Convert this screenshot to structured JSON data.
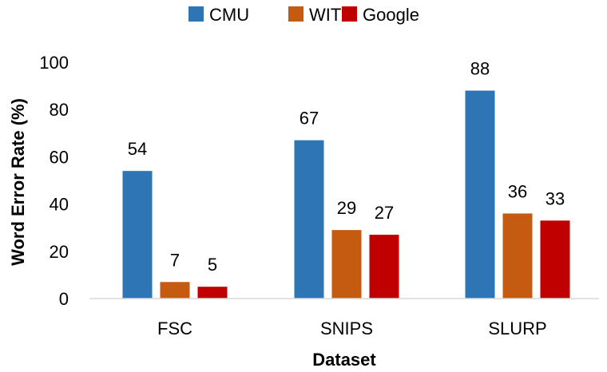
{
  "chart_data": {
    "type": "bar",
    "categories": [
      "FSC",
      "SNIPS",
      "SLURP"
    ],
    "series": [
      {
        "name": "CMU",
        "values": [
          54,
          67,
          88
        ],
        "color": "#2E75B6"
      },
      {
        "name": "WIT",
        "values": [
          7,
          29,
          36
        ],
        "color": "#C55A11"
      },
      {
        "name": "Google",
        "values": [
          5,
          27,
          33
        ],
        "color": "#C00000"
      }
    ],
    "data_labels": [
      [
        "54",
        "67",
        "88"
      ],
      [
        "7",
        "29",
        "36"
      ],
      [
        "5",
        "27",
        "33"
      ]
    ],
    "title": "",
    "xlabel": "Dataset",
    "ylabel": "Word Error Rate (%)",
    "ylim": [
      0,
      100
    ],
    "yticks": [
      "0",
      "20",
      "40",
      "60",
      "80",
      "100"
    ],
    "legend_position": "top-center",
    "grid": false,
    "axis_color": "#D9D9D9"
  }
}
